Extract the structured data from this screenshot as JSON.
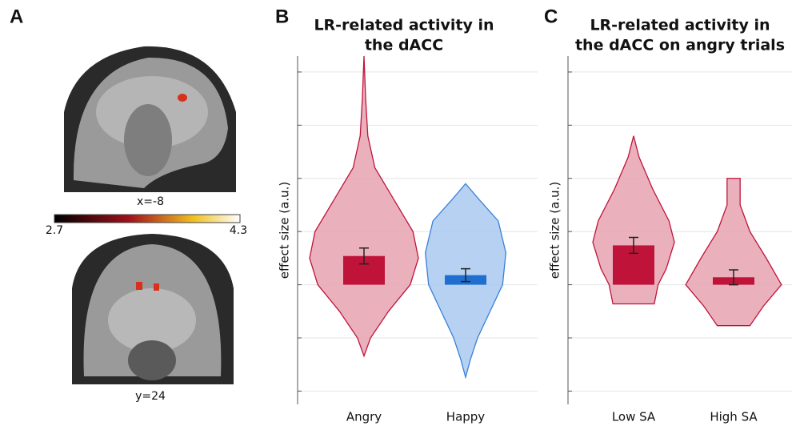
{
  "panel_a": {
    "label": "A",
    "slice_labels": [
      "x=-8",
      "y=24"
    ],
    "colorbar_ticks": [
      2.7,
      4.3
    ]
  },
  "chart_data": [
    {
      "type": "violin",
      "panel_label": "B",
      "title_lines": [
        "LR-related activity in",
        "the dACC"
      ],
      "ylabel": "effect size (a.u.)",
      "categories": [
        "Angry",
        "Happy"
      ],
      "values": [
        0.54,
        0.18
      ],
      "errors": [
        0.15,
        0.12
      ],
      "colors": [
        "#c0133a",
        "#1f6fd1"
      ],
      "fill_colors": [
        "#e6a3b2",
        "#a9c9ef"
      ],
      "stroke_colors": [
        "#c0133a",
        "#3a80d8"
      ],
      "violins": [
        {
          "y": [
            4.3,
            3.5,
            2.8,
            2.2,
            1.6,
            1.0,
            0.5,
            0,
            -0.5,
            -1.0,
            -1.34
          ],
          "density": [
            0,
            0.03,
            0.07,
            0.2,
            0.55,
            0.9,
            1.0,
            0.85,
            0.45,
            0.12,
            0
          ]
        },
        {
          "y": [
            1.9,
            1.6,
            1.2,
            0.6,
            0,
            -0.5,
            -1.0,
            -1.4,
            -1.74
          ],
          "density": [
            0,
            0.25,
            0.6,
            0.74,
            0.68,
            0.45,
            0.22,
            0.09,
            0
          ]
        }
      ],
      "ylim": [
        -2.25,
        4.3
      ],
      "yticks": [
        -2,
        -1,
        0,
        1,
        2,
        3,
        4
      ],
      "grid": true
    },
    {
      "type": "violin",
      "panel_label": "C",
      "title_lines": [
        "LR-related activity in",
        "the dACC on angry trials"
      ],
      "ylabel": "effect size (a.u.)",
      "categories": [
        "Low SA",
        "High SA"
      ],
      "values": [
        0.74,
        0.14
      ],
      "errors": [
        0.15,
        0.14
      ],
      "colors": [
        "#c0133a",
        "#c0133a"
      ],
      "fill_colors": [
        "#e6a3b2",
        "#e6a3b2"
      ],
      "stroke_colors": [
        "#c0133a",
        "#c0133a"
      ],
      "violins": [
        {
          "y": [
            2.8,
            2.4,
            1.8,
            1.2,
            0.8,
            0.3,
            0,
            -0.36
          ],
          "density": [
            0,
            0.1,
            0.35,
            0.65,
            0.75,
            0.6,
            0.45,
            0.38
          ]
        },
        {
          "y": [
            2.0,
            1.5,
            1.0,
            0.5,
            0,
            -0.4,
            -0.77
          ],
          "density": [
            0.12,
            0.12,
            0.3,
            0.6,
            0.88,
            0.55,
            0.3
          ]
        }
      ],
      "ylim": [
        -2.25,
        4.3
      ],
      "yticks": [
        -2,
        -1,
        0,
        1,
        2,
        3,
        4
      ],
      "grid": true
    }
  ]
}
